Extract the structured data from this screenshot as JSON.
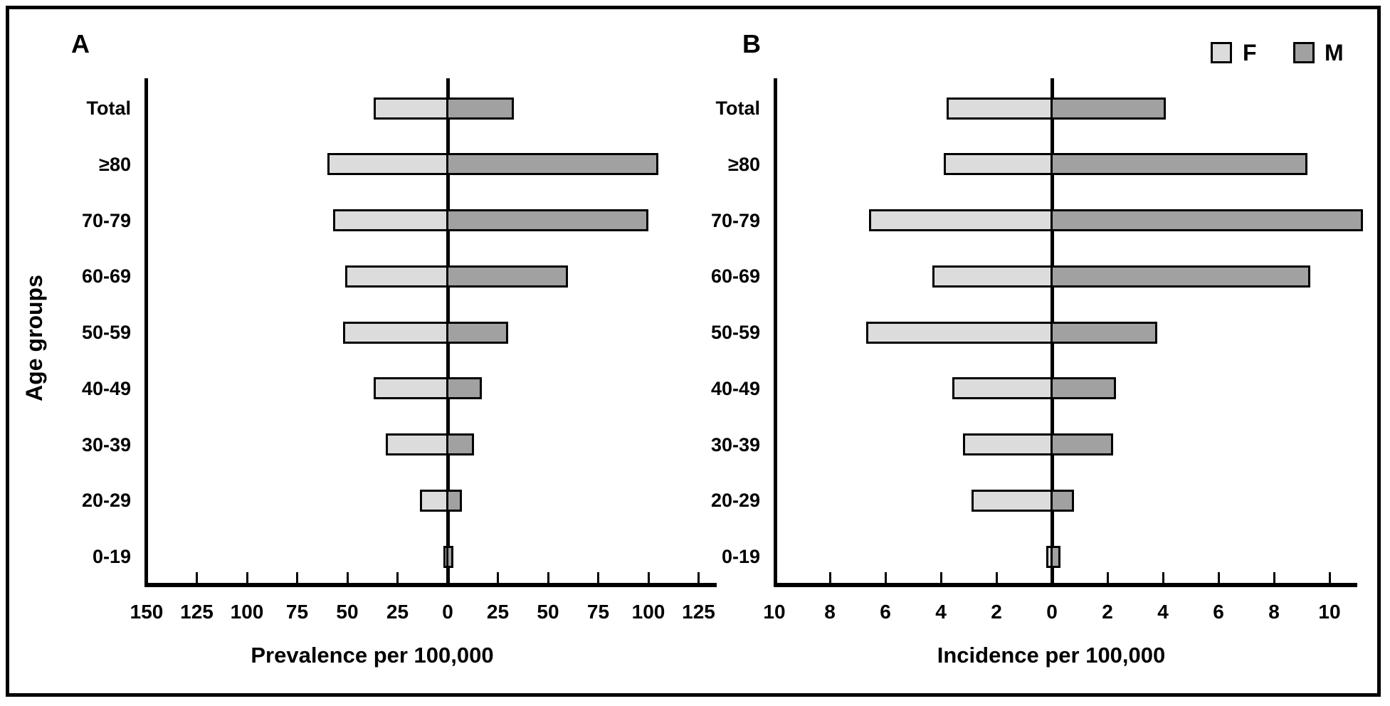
{
  "figure": {
    "panels": [
      {
        "label": "A"
      },
      {
        "label": "B"
      }
    ],
    "y_axis_title": "Age groups",
    "legend": {
      "position": "top-right",
      "items": [
        {
          "label": "F",
          "color": "#dcdcdc"
        },
        {
          "label": "M",
          "color": "#a1a1a1"
        }
      ]
    },
    "colors": {
      "female_fill": "#dcdcdc",
      "male_fill": "#a1a1a1",
      "outline": "#000000",
      "background": "#ffffff"
    }
  },
  "chart_data": [
    {
      "type": "bar",
      "subtype": "population-pyramid-horizontal",
      "panel": "A",
      "xlabel": "Prevalence per 100,000",
      "ylabel": "Age groups",
      "categories": [
        "Total",
        "≥80",
        "70-79",
        "60-69",
        "50-59",
        "40-49",
        "30-39",
        "20-29",
        "0-19"
      ],
      "series": [
        {
          "name": "F",
          "side": "left",
          "color": "#dcdcdc",
          "values": [
            37,
            60,
            57,
            51,
            52,
            37,
            31,
            14,
            2
          ]
        },
        {
          "name": "M",
          "side": "right",
          "color": "#a1a1a1",
          "values": [
            33,
            105,
            100,
            60,
            30,
            17,
            13,
            7,
            3
          ]
        }
      ],
      "x_ticks": [
        -150,
        -125,
        -100,
        -75,
        -50,
        -25,
        0,
        25,
        50,
        75,
        100,
        125
      ],
      "xlim": [
        -150,
        132
      ],
      "grid": false,
      "legend_position": "top-right"
    },
    {
      "type": "bar",
      "subtype": "population-pyramid-horizontal",
      "panel": "B",
      "xlabel": "Incidence per 100,000",
      "ylabel": "Age groups",
      "categories": [
        "Total",
        "≥80",
        "70-79",
        "60-69",
        "50-59",
        "40-49",
        "30-39",
        "20-29",
        "0-19"
      ],
      "series": [
        {
          "name": "F",
          "side": "left",
          "color": "#dcdcdc",
          "values": [
            3.8,
            3.9,
            6.6,
            4.3,
            6.7,
            3.6,
            3.2,
            2.9,
            0.2
          ]
        },
        {
          "name": "M",
          "side": "right",
          "color": "#a1a1a1",
          "values": [
            4.1,
            9.2,
            11.2,
            9.3,
            3.8,
            2.3,
            2.2,
            0.8,
            0.3
          ]
        }
      ],
      "x_ticks": [
        -10,
        -8,
        -6,
        -4,
        -2,
        0,
        2,
        4,
        6,
        8,
        10
      ],
      "xlim": [
        -10,
        11.3
      ],
      "grid": false,
      "legend_position": "top-right"
    }
  ]
}
